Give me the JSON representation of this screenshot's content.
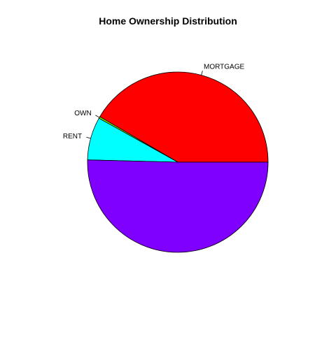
{
  "chart_data": {
    "type": "pie",
    "title": "Home Ownership Distribution",
    "slices": [
      {
        "label": "MORTGAGE",
        "value": 41.6,
        "color": "#FF0000"
      },
      {
        "label": "OWN",
        "value": 0.3,
        "color": "#80FF00"
      },
      {
        "label": "RENT",
        "value": 7.7,
        "color": "#00FFFF"
      },
      {
        "label": "",
        "value": 50.4,
        "color": "#8000FF"
      }
    ],
    "start_angle_deg": 0,
    "direction": "counterclockwise"
  }
}
